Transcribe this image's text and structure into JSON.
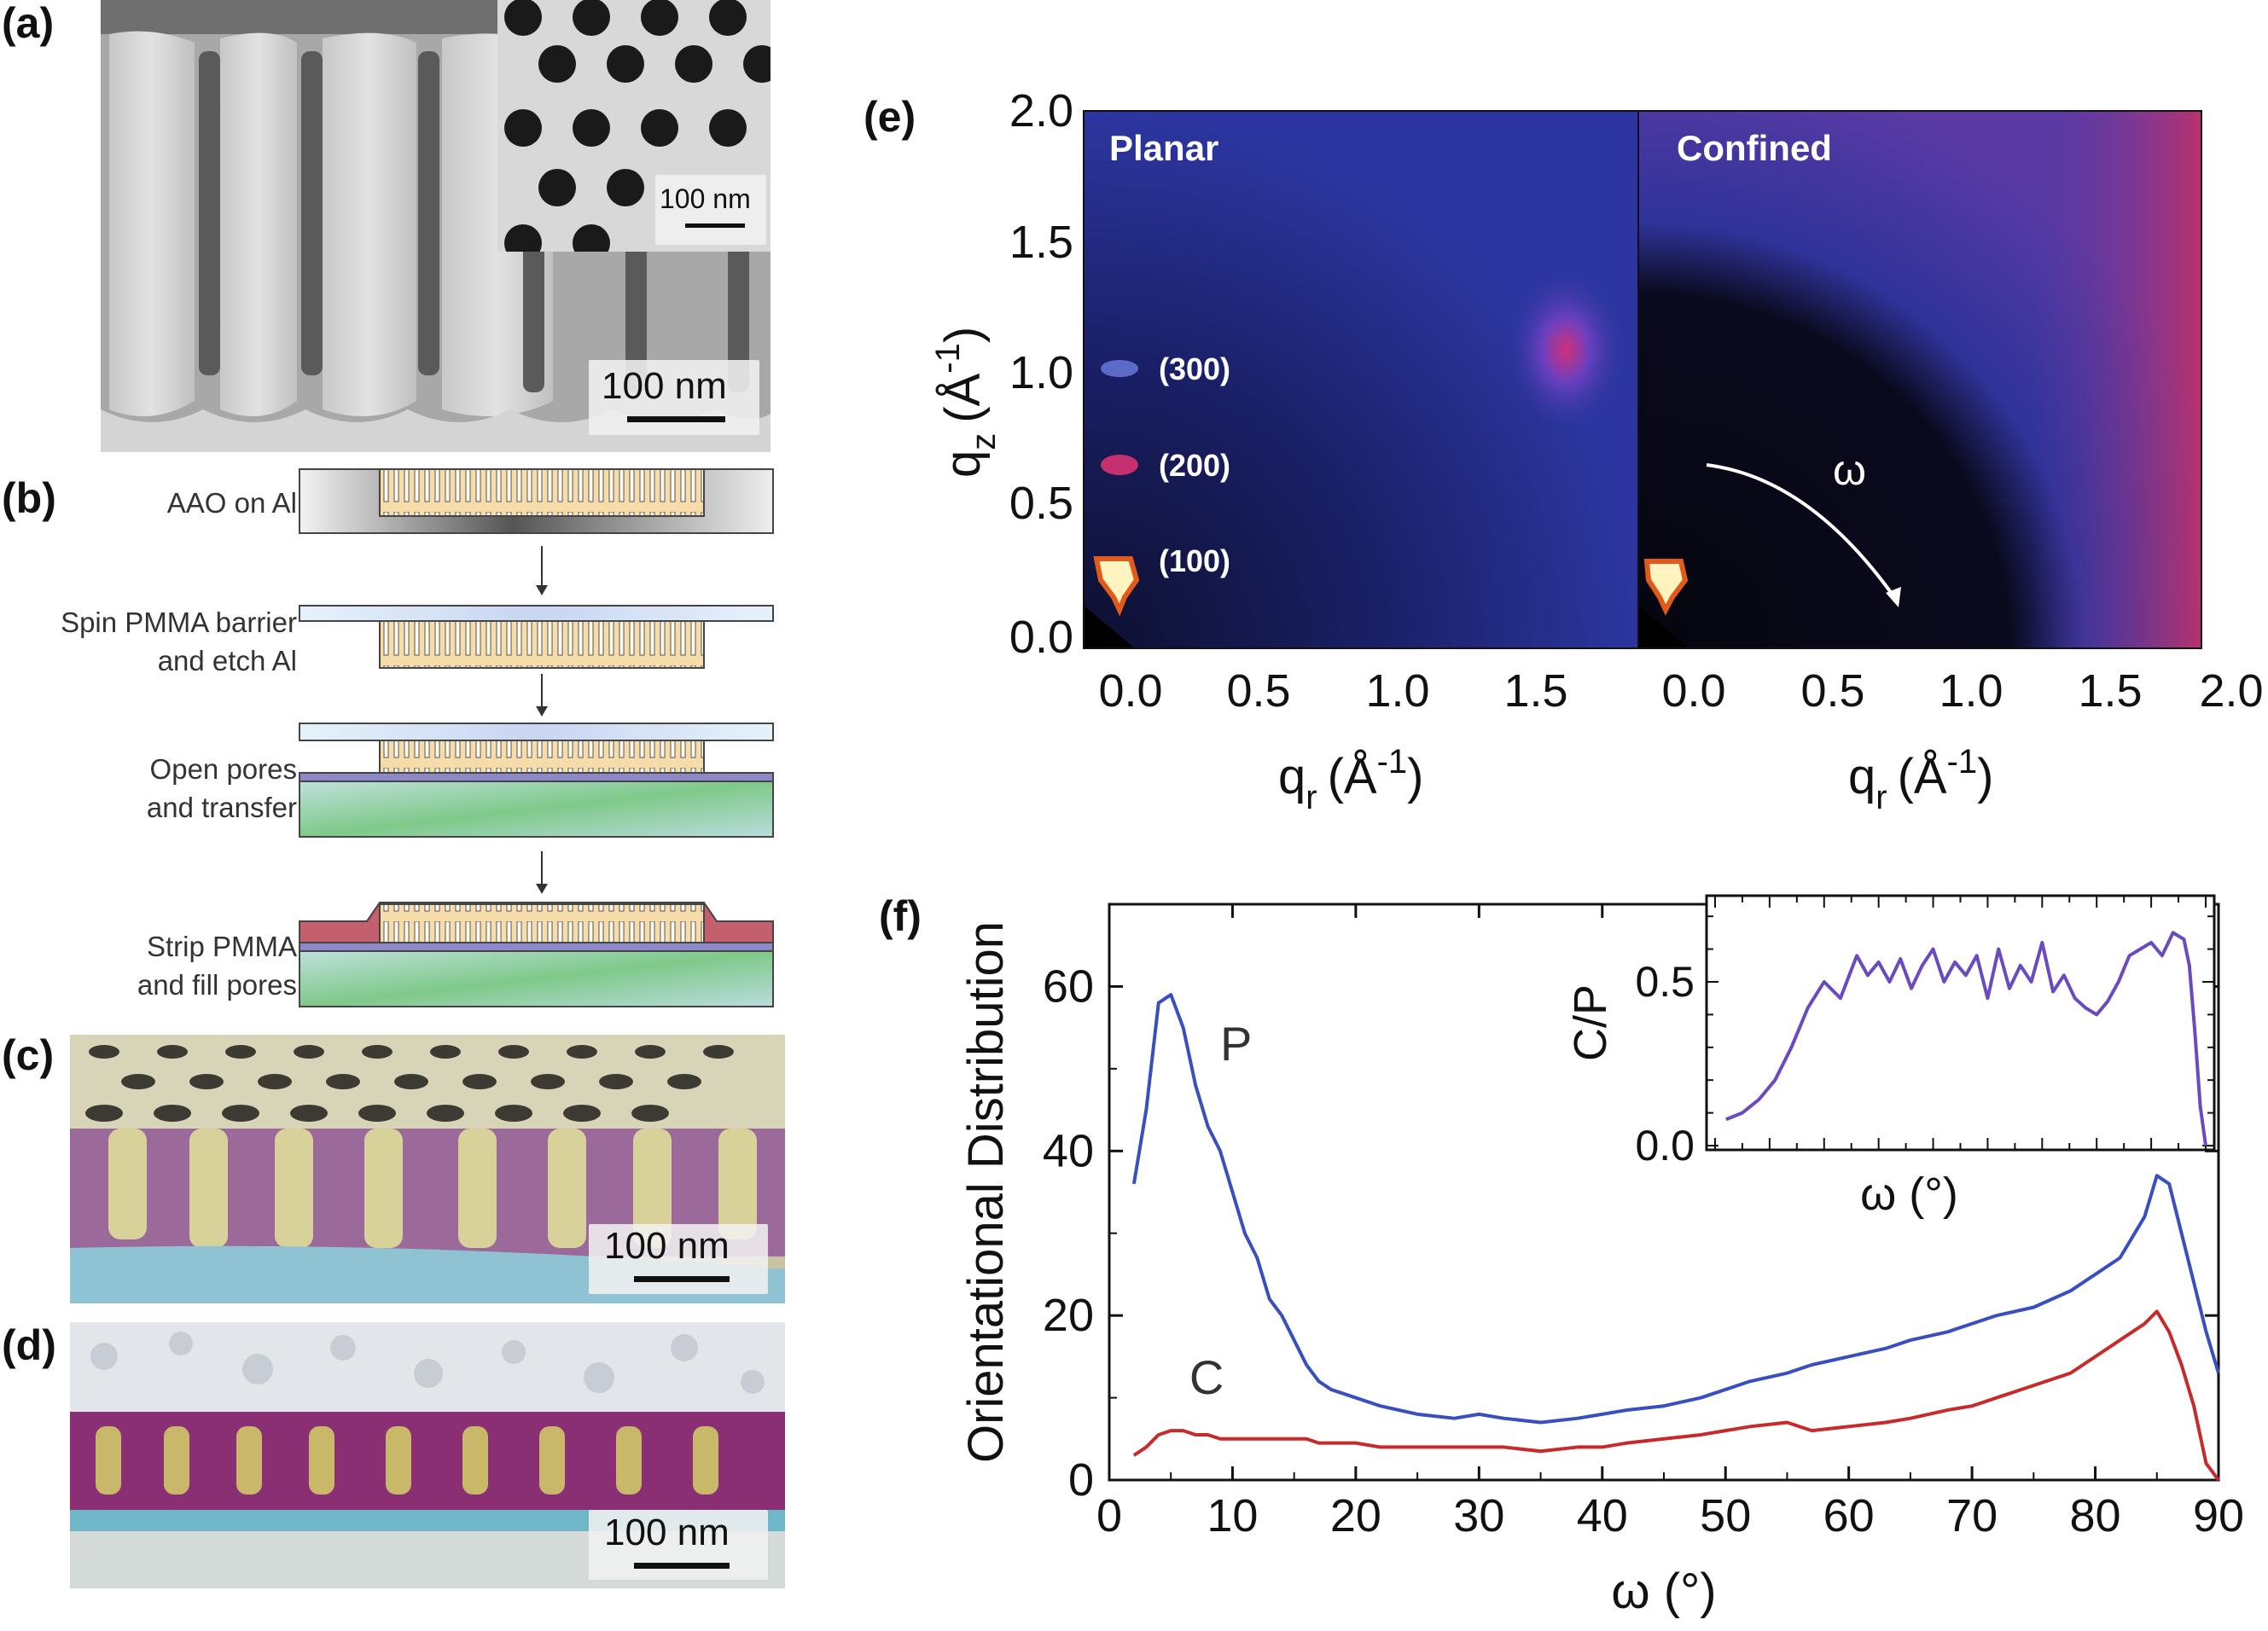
{
  "panels": {
    "a": {
      "label": "(a)",
      "inset_scale": "100 nm",
      "scale": "100 nm"
    },
    "b": {
      "label": "(b)",
      "steps": [
        {
          "line1": "AAO on Al",
          "line2": ""
        },
        {
          "line1": "Spin PMMA barrier",
          "line2": "and etch Al"
        },
        {
          "line1": "Open pores",
          "line2": "and transfer"
        },
        {
          "line1": "Strip PMMA",
          "line2": "and fill pores"
        }
      ]
    },
    "c": {
      "label": "(c)",
      "scale": "100 nm"
    },
    "d": {
      "label": "(d)",
      "scale": "100 nm"
    },
    "e": {
      "label": "(e)",
      "left_title": "Planar",
      "right_title": "Confined",
      "peaks": [
        "(300)",
        "(200)",
        "(100)"
      ],
      "omega_label": "ω",
      "y_ticks": [
        "2.0",
        "1.5",
        "1.0",
        "0.5",
        "0.0"
      ],
      "x_ticks_left": [
        "0.0",
        "0.5",
        "1.0",
        "1.5"
      ],
      "x_ticks_right": [
        "0.0",
        "0.5",
        "1.0",
        "1.5",
        "2.0"
      ],
      "ylabel_main": "q",
      "ylabel_sub": "z",
      "ylabel_unit": "(Å",
      "ylabel_exp": "-1",
      "xlabel_main": "q",
      "xlabel_sub": "r",
      "xlabel_unit": "(Å",
      "xlabel_exp": "-1",
      "close_paren": ")"
    },
    "f": {
      "label": "(f)"
    }
  },
  "chart_data": {
    "type": "line",
    "title": "",
    "xlabel": "ω (°)",
    "ylabel": "Orientational Distribution",
    "xlim": [
      0,
      90
    ],
    "ylim": [
      0,
      70
    ],
    "x_ticks": [
      0,
      10,
      20,
      30,
      40,
      50,
      60,
      70,
      80,
      90
    ],
    "y_ticks": [
      0,
      20,
      40,
      60
    ],
    "x": [
      2,
      3,
      4,
      5,
      6,
      7,
      8,
      9,
      10,
      11,
      12,
      13,
      14,
      15,
      16,
      17,
      18,
      20,
      22,
      25,
      28,
      30,
      32,
      35,
      38,
      40,
      42,
      45,
      48,
      50,
      52,
      55,
      57,
      60,
      63,
      65,
      68,
      70,
      72,
      75,
      78,
      80,
      82,
      84,
      85,
      86,
      87,
      88,
      89,
      90
    ],
    "series": [
      {
        "name": "P",
        "color": "#3a4fbf",
        "values": [
          36,
          45,
          58,
          59,
          55,
          48,
          43,
          40,
          35,
          30,
          27,
          22,
          20,
          17,
          14,
          12,
          11,
          10,
          9,
          8,
          7.5,
          8,
          7.5,
          7,
          7.5,
          8,
          8.5,
          9,
          10,
          11,
          12,
          13,
          14,
          15,
          16,
          17,
          18,
          19,
          20,
          21,
          23,
          25,
          27,
          32,
          37,
          36,
          30,
          24,
          18,
          13
        ]
      },
      {
        "name": "C",
        "color": "#c62a2a",
        "values": [
          3,
          4,
          5.5,
          6,
          6,
          5.5,
          5.5,
          5,
          5,
          5,
          5,
          5,
          5,
          5,
          5,
          4.5,
          4.5,
          4.5,
          4,
          4,
          4,
          4,
          4,
          3.5,
          4,
          4,
          4.5,
          5,
          5.5,
          6,
          6.5,
          7,
          6,
          6.5,
          7,
          7.5,
          8.5,
          9,
          10,
          11.5,
          13,
          15,
          17,
          19,
          20.5,
          18,
          14,
          9,
          2,
          0
        ]
      }
    ],
    "labels": {
      "P": "P",
      "C": "C"
    },
    "inset": {
      "type": "line",
      "name": "C/P",
      "ylabel": "C/P",
      "xlabel": "ω (°)",
      "color": "#6a4bbf",
      "ylim": [
        0,
        0.75
      ],
      "y_ticks": [
        "0.0",
        "0.5"
      ],
      "xlim": [
        0,
        90
      ],
      "x": [
        2,
        5,
        8,
        11,
        14,
        17,
        20,
        23,
        26,
        28,
        30,
        32,
        34,
        36,
        38,
        40,
        42,
        44,
        46,
        48,
        50,
        52,
        54,
        56,
        58,
        60,
        62,
        64,
        66,
        68,
        70,
        72,
        74,
        76,
        78,
        80,
        82,
        84,
        86,
        87,
        88,
        89,
        90
      ],
      "values": [
        0.08,
        0.1,
        0.14,
        0.2,
        0.3,
        0.42,
        0.5,
        0.45,
        0.58,
        0.52,
        0.56,
        0.5,
        0.57,
        0.48,
        0.55,
        0.6,
        0.5,
        0.56,
        0.52,
        0.58,
        0.45,
        0.6,
        0.48,
        0.55,
        0.5,
        0.62,
        0.47,
        0.52,
        0.45,
        0.42,
        0.4,
        0.44,
        0.5,
        0.58,
        0.6,
        0.62,
        0.58,
        0.65,
        0.63,
        0.55,
        0.35,
        0.12,
        0.0
      ]
    }
  }
}
